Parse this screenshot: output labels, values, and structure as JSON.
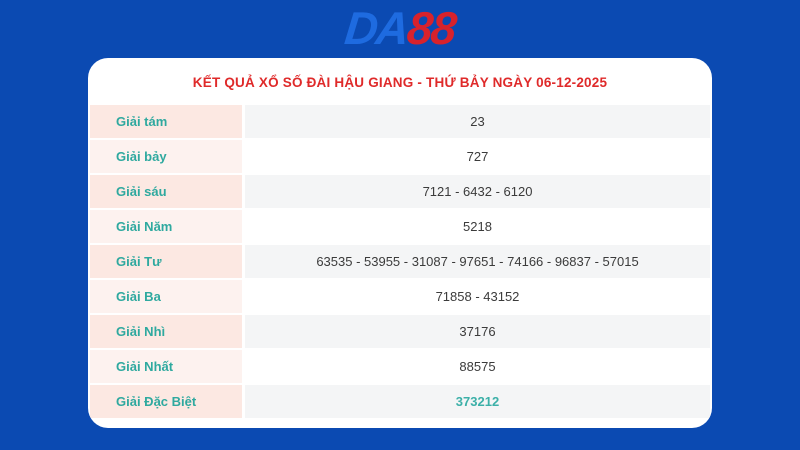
{
  "page": {
    "background_color": "#0b4ab2"
  },
  "logo": {
    "part1": "DA",
    "part2": "88",
    "part1_color": "#1e6be0",
    "part2_color": "#d7222c"
  },
  "header": {
    "title": "KẾT QUẢ XỔ SỐ ĐÀI HẬU GIANG - THỨ BẢY NGÀY 06-12-2025",
    "title_color": "#df2a2a"
  },
  "table": {
    "label_color": "#2fa99f",
    "special_value_color": "#3cb0a8",
    "rows": [
      {
        "label": "Giải tám",
        "value": "23"
      },
      {
        "label": "Giải bảy",
        "value": "727"
      },
      {
        "label": "Giải sáu",
        "value": "7121 - 6432 - 6120"
      },
      {
        "label": "Giải Năm",
        "value": "5218"
      },
      {
        "label": "Giải Tư",
        "value": "63535 - 53955 - 31087 - 97651 - 74166 - 96837 - 57015"
      },
      {
        "label": "Giải Ba",
        "value": "71858 - 43152"
      },
      {
        "label": "Giải Nhì",
        "value": "37176"
      },
      {
        "label": "Giải Nhất",
        "value": "88575"
      },
      {
        "label": "Giải Đặc Biệt",
        "value": "373212"
      }
    ]
  }
}
